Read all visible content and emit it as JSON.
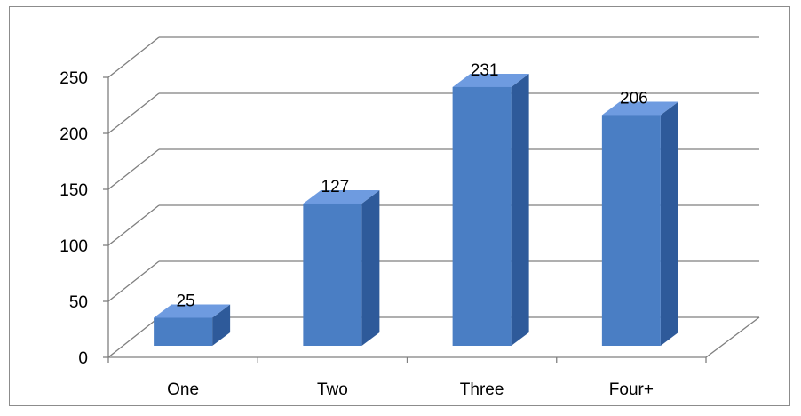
{
  "chart_data": {
    "type": "bar",
    "three_d": true,
    "categories": [
      "One",
      "Two",
      "Three",
      "Four+"
    ],
    "values": [
      25,
      127,
      231,
      206
    ],
    "value_labels": [
      "25",
      "127",
      "231",
      "206"
    ],
    "title": "",
    "xlabel": "",
    "ylabel": "",
    "ylim": [
      0,
      250
    ],
    "yticks": [
      0,
      50,
      100,
      150,
      200,
      250
    ],
    "ytick_labels": [
      "0",
      "50",
      "100",
      "150",
      "200",
      "250"
    ],
    "grid": true,
    "legend": "none",
    "colors": {
      "bar_front": "#4a7ec4",
      "bar_top": "#6e9be0",
      "bar_side": "#2e5a9a",
      "gridline": "#7f7f7f",
      "axis": "#7f7f7f",
      "frame_border": "#8c8c8c"
    }
  }
}
